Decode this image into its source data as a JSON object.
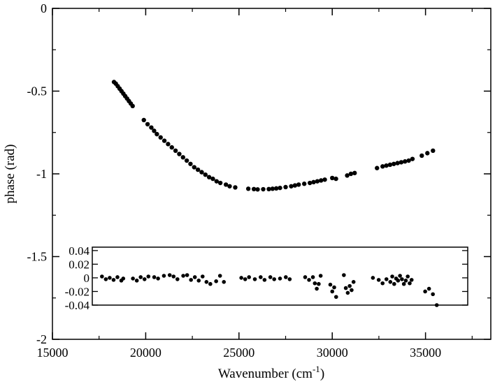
{
  "chart_data": [
    {
      "type": "scatter",
      "title": "",
      "xlabel": "Wavenumber (cm",
      "xlabel_superscript": "-1",
      "xlabel_suffix": ")",
      "ylabel": "phase (rad)",
      "xlim": [
        15000,
        38500
      ],
      "ylim": [
        -2,
        0
      ],
      "xticks": [
        15000,
        20000,
        25000,
        30000,
        35000
      ],
      "xtick_labels": [
        "15000",
        "20000",
        "25000",
        "30000",
        "35000"
      ],
      "yticks": [
        0,
        -0.5,
        -1,
        -1.5,
        -2
      ],
      "ytick_labels": [
        "0",
        "-0.5",
        "-1",
        "-1.5",
        "-2"
      ],
      "grid": false,
      "legend": "none",
      "marker_color": "#000000",
      "series": [
        {
          "x": [
            18300,
            18400,
            18500,
            18600,
            18700,
            18800,
            18900,
            19000,
            19100,
            19200,
            19300,
            19900,
            20100,
            20300,
            20450,
            20600,
            20800,
            21000,
            21200,
            21400,
            21600,
            21800,
            22000,
            22200,
            22400,
            22600,
            22800,
            23000,
            23200,
            23400,
            23600,
            23800,
            24000,
            24300,
            24500,
            24800,
            25500,
            25800,
            26000,
            26300,
            26600,
            26800,
            27000,
            27200,
            27500,
            27800,
            28000,
            28200,
            28500,
            28800,
            29000,
            29200,
            29400,
            29600,
            30000,
            30200,
            30800,
            31000,
            31200,
            32400,
            32700,
            32900,
            33100,
            33300,
            33500,
            33700,
            33900,
            34100,
            34300,
            34800,
            35100,
            35400
          ],
          "y": [
            -0.445,
            -0.455,
            -0.47,
            -0.485,
            -0.5,
            -0.515,
            -0.53,
            -0.545,
            -0.56,
            -0.575,
            -0.59,
            -0.675,
            -0.7,
            -0.72,
            -0.74,
            -0.76,
            -0.78,
            -0.8,
            -0.82,
            -0.84,
            -0.86,
            -0.88,
            -0.9,
            -0.92,
            -0.94,
            -0.96,
            -0.975,
            -0.99,
            -1.005,
            -1.02,
            -1.03,
            -1.045,
            -1.055,
            -1.065,
            -1.075,
            -1.082,
            -1.09,
            -1.092,
            -1.094,
            -1.093,
            -1.092,
            -1.09,
            -1.088,
            -1.085,
            -1.08,
            -1.075,
            -1.07,
            -1.065,
            -1.06,
            -1.055,
            -1.05,
            -1.045,
            -1.04,
            -1.035,
            -1.025,
            -1.03,
            -1.01,
            -1.0,
            -0.995,
            -0.965,
            -0.955,
            -0.95,
            -0.945,
            -0.94,
            -0.935,
            -0.93,
            -0.925,
            -0.92,
            -0.91,
            -0.89,
            -0.875,
            -0.86
          ]
        }
      ]
    },
    {
      "type": "scatter",
      "title": "",
      "xlabel": "",
      "ylabel": "",
      "xlim": [
        17800,
        37200
      ],
      "ylim": [
        -0.04,
        0.045
      ],
      "yticks": [
        0.04,
        0.02,
        0,
        -0.02,
        -0.04
      ],
      "ytick_labels": [
        "0.04",
        "0.02",
        "0",
        "-0.02",
        "-0.04"
      ],
      "grid": false,
      "legend": "none",
      "marker_color": "#000000",
      "series": [
        {
          "x": [
            18300,
            18500,
            18700,
            18900,
            19100,
            19300,
            19400,
            19900,
            20100,
            20300,
            20500,
            20700,
            21000,
            21200,
            21500,
            21800,
            22000,
            22200,
            22500,
            22700,
            22900,
            23100,
            23300,
            23500,
            23700,
            23900,
            24200,
            24400,
            24600,
            25500,
            25700,
            25900,
            26200,
            26500,
            26700,
            27000,
            27200,
            27500,
            27800,
            28000,
            28800,
            29000,
            29200,
            29300,
            29400,
            29500,
            29600,
            30100,
            30200,
            30300,
            30400,
            30800,
            30900,
            31000,
            31100,
            31200,
            31300,
            32300,
            32600,
            32800,
            33000,
            33200,
            33300,
            33400,
            33500,
            33600,
            33700,
            33800,
            33900,
            34000,
            34100,
            34200,
            34300,
            35000,
            35200,
            35400,
            35600
          ],
          "y": [
            0.002,
            -0.002,
            0.0,
            -0.003,
            0.001,
            -0.004,
            -0.001,
            -0.001,
            -0.004,
            0.001,
            -0.002,
            0.002,
            0.001,
            -0.001,
            0.003,
            0.004,
            0.002,
            -0.002,
            0.003,
            0.004,
            -0.003,
            0.001,
            -0.004,
            0.002,
            -0.006,
            -0.009,
            -0.005,
            0.003,
            -0.006,
            0.0,
            -0.002,
            0.001,
            -0.002,
            0.001,
            -0.003,
            0.001,
            -0.002,
            -0.001,
            0.001,
            -0.002,
            0.001,
            -0.003,
            0.001,
            -0.008,
            -0.016,
            -0.009,
            0.003,
            -0.01,
            -0.02,
            -0.014,
            -0.028,
            0.004,
            -0.015,
            -0.022,
            -0.012,
            -0.018,
            -0.006,
            0.0,
            -0.003,
            -0.008,
            -0.002,
            -0.006,
            0.002,
            -0.009,
            -0.001,
            -0.004,
            0.003,
            -0.002,
            -0.009,
            -0.004,
            0.002,
            -0.008,
            -0.003,
            -0.02,
            -0.016,
            -0.024,
            -0.04
          ]
        }
      ]
    }
  ]
}
